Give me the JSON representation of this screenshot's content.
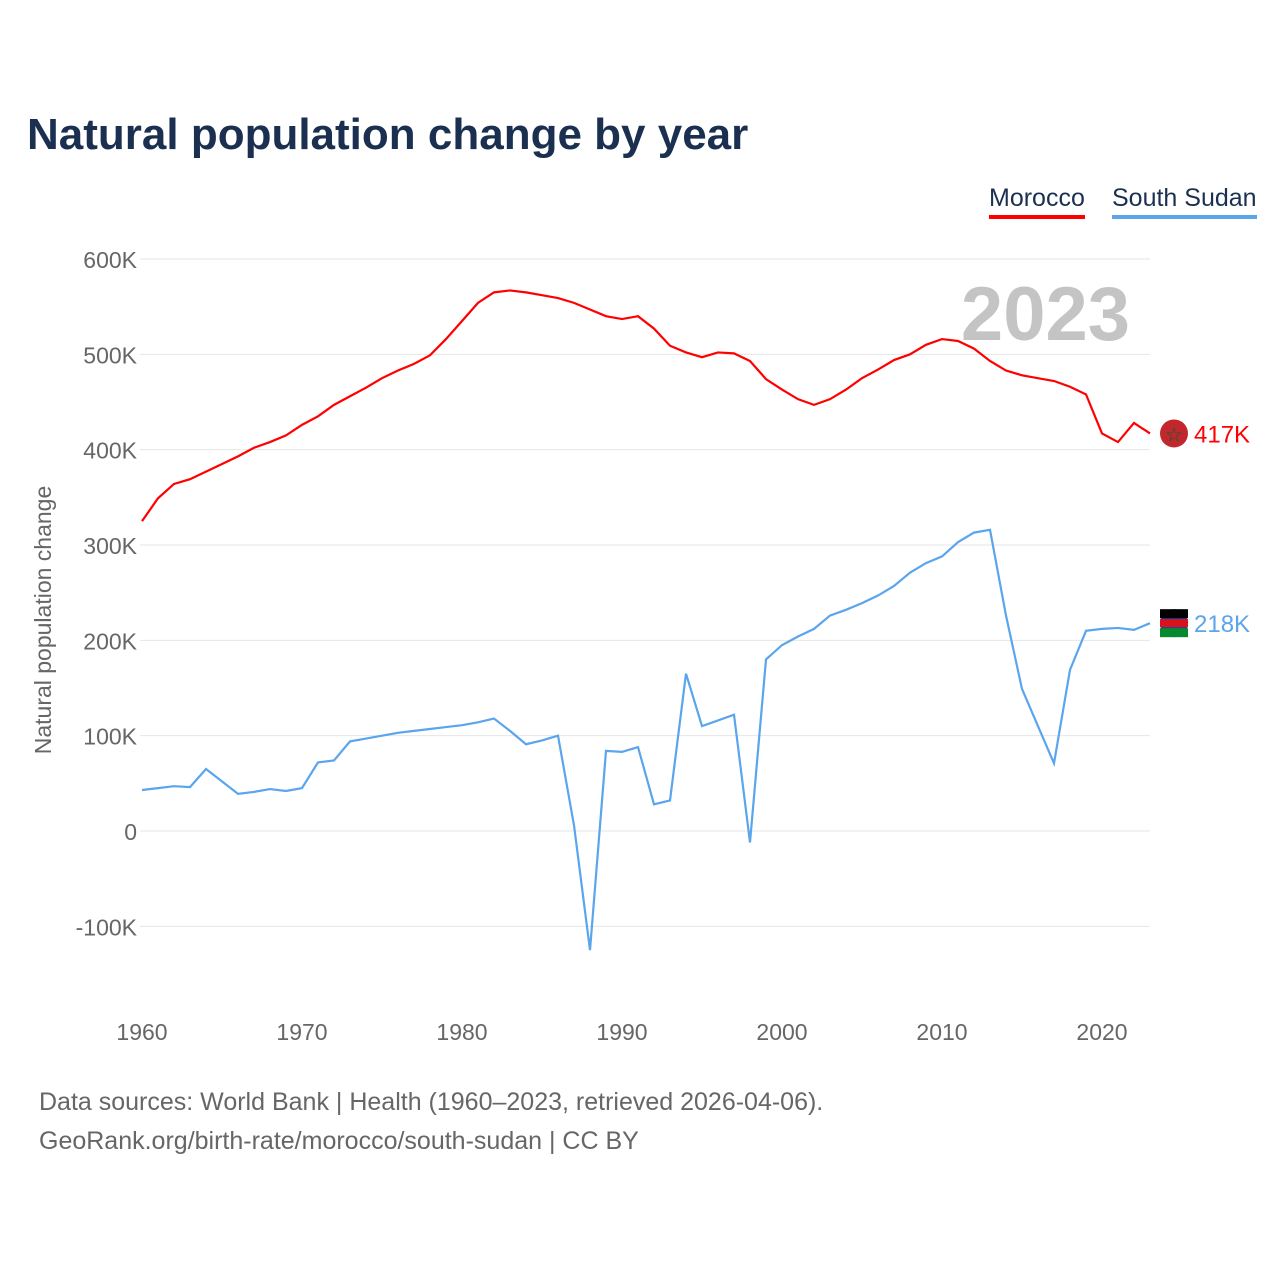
{
  "chart_data": {
    "type": "line",
    "title": "Natural population change by year",
    "ylabel": "Natural population change",
    "xlabel": "",
    "ylim": [
      -150000,
      600000
    ],
    "xlim": [
      1960,
      2023
    ],
    "yticks": [
      {
        "v": 600000,
        "label": "600K"
      },
      {
        "v": 500000,
        "label": "500K"
      },
      {
        "v": 400000,
        "label": "400K"
      },
      {
        "v": 300000,
        "label": "300K"
      },
      {
        "v": 200000,
        "label": "200K"
      },
      {
        "v": 100000,
        "label": "100K"
      },
      {
        "v": 0,
        "label": "0"
      },
      {
        "v": -100000,
        "label": "-100K"
      }
    ],
    "xticks": [
      {
        "v": 1960,
        "label": "1960"
      },
      {
        "v": 1970,
        "label": "1970"
      },
      {
        "v": 1980,
        "label": "1980"
      },
      {
        "v": 1990,
        "label": "1990"
      },
      {
        "v": 2000,
        "label": "2000"
      },
      {
        "v": 2010,
        "label": "2010"
      },
      {
        "v": 2020,
        "label": "2020"
      }
    ],
    "year_label": "2023",
    "grid": true,
    "legend_position": "top-right",
    "x_start": 1960,
    "series": [
      {
        "name": "Morocco",
        "color": "#ff0000",
        "end_label": "417K",
        "values": [
          325,
          349,
          364,
          369,
          377,
          385,
          393,
          402,
          408,
          415,
          426,
          435,
          447,
          456,
          465,
          475,
          483,
          490,
          499,
          516,
          535,
          554,
          565,
          567,
          565,
          562,
          559,
          554,
          547,
          540,
          537,
          540,
          527,
          509,
          502,
          497,
          502,
          501,
          493,
          474,
          463,
          453,
          447,
          453,
          463,
          475,
          484,
          494,
          500,
          510,
          516,
          514,
          506,
          493,
          483,
          478,
          475,
          472,
          466,
          458,
          417,
          408,
          428,
          417
        ]
      },
      {
        "name": "South Sudan",
        "color": "#5aa5ec",
        "end_label": "218K",
        "values": [
          43,
          45,
          47,
          46,
          65,
          52,
          39,
          41,
          44,
          42,
          45,
          72,
          74,
          94,
          97,
          100,
          103,
          105,
          107,
          109,
          111,
          114,
          118,
          105,
          91,
          95,
          100,
          6,
          -125,
          84,
          83,
          88,
          28,
          32,
          165,
          110,
          116,
          122,
          -12,
          180,
          195,
          204,
          212,
          226,
          232,
          239,
          247,
          257,
          271,
          281,
          288,
          303,
          313,
          316,
          226,
          149,
          110,
          71,
          169,
          210,
          212,
          213,
          211,
          218
        ]
      }
    ],
    "value_unit": "thousands"
  },
  "footer": {
    "line1": "Data sources: World Bank | Health (1960–2023, retrieved 2026-04-06).",
    "line2": "GeoRank.org/birth-rate/morocco/south-sudan | CC BY"
  }
}
